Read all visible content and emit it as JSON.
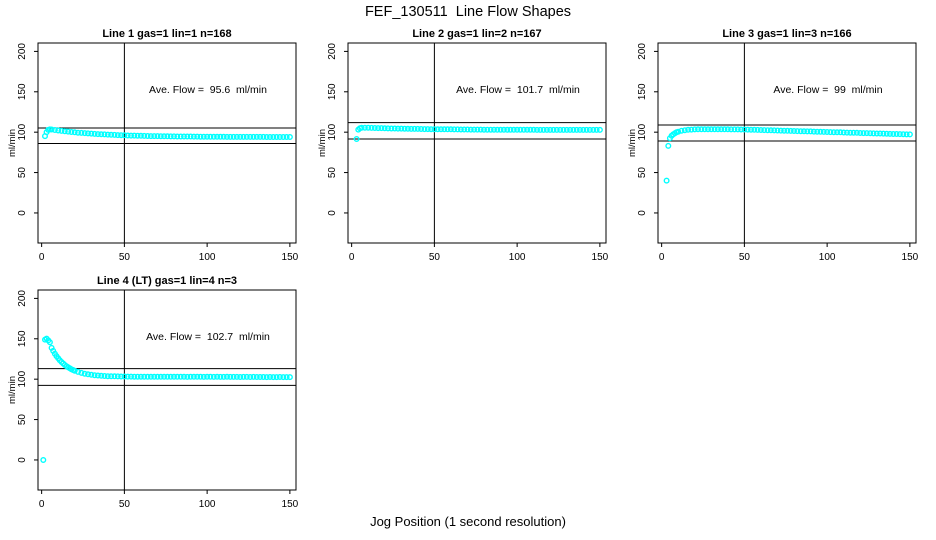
{
  "page": {
    "title": "FEF_130511  Line Flow Shapes",
    "xlabel": "Jog Position (1 second resolution)"
  },
  "colors": {
    "point": "#00ffff",
    "axis": "#000000",
    "background": "#ffffff"
  },
  "chart_data": [
    {
      "type": "scatter",
      "title": "Line 1 gas=1 lin=1 n=168",
      "annotation": "Ave. Flow =  95.6  ml/min",
      "ave_flow_ml_min": 95.6,
      "n": 168,
      "ylabel": "ml/min",
      "x_ticks": [
        0,
        50,
        100,
        150
      ],
      "y_ticks": [
        0,
        50,
        100,
        150,
        200
      ],
      "xlim": [
        -2.2,
        153.7
      ],
      "ylim": [
        -37.2,
        210.4
      ],
      "vline_x": 50,
      "hlines": [
        105.2,
        86.0
      ],
      "grid": false,
      "points": [
        [
          2,
          95.2
        ],
        [
          3,
          100.1
        ],
        [
          4,
          102.8
        ],
        [
          5,
          103.4
        ],
        [
          6,
          103.3
        ],
        [
          8,
          102.7
        ],
        [
          10,
          102.1
        ],
        [
          12,
          101.6
        ],
        [
          14,
          101.1
        ],
        [
          16,
          100.7
        ],
        [
          18,
          100.2
        ],
        [
          20,
          99.8
        ],
        [
          22,
          99.4
        ],
        [
          24,
          99.1
        ],
        [
          26,
          98.8
        ],
        [
          28,
          98.5
        ],
        [
          30,
          98.2
        ],
        [
          32,
          97.9
        ],
        [
          34,
          97.6
        ],
        [
          36,
          97.4
        ],
        [
          38,
          97.2
        ],
        [
          40,
          97.0
        ],
        [
          42,
          96.8
        ],
        [
          44,
          96.6
        ],
        [
          46,
          96.4
        ],
        [
          48,
          96.2
        ],
        [
          50,
          96.1
        ],
        [
          52,
          95.9
        ],
        [
          54,
          95.8
        ],
        [
          56,
          95.7
        ],
        [
          58,
          95.6
        ],
        [
          60,
          95.5
        ],
        [
          62,
          95.4
        ],
        [
          64,
          95.3
        ],
        [
          66,
          95.2
        ],
        [
          68,
          95.1
        ],
        [
          70,
          95.1
        ],
        [
          72,
          95.0
        ],
        [
          74,
          94.9
        ],
        [
          76,
          94.9
        ],
        [
          78,
          94.8
        ],
        [
          80,
          94.8
        ],
        [
          82,
          94.7
        ],
        [
          84,
          94.7
        ],
        [
          86,
          94.6
        ],
        [
          88,
          94.6
        ],
        [
          90,
          94.6
        ],
        [
          92,
          94.5
        ],
        [
          94,
          94.5
        ],
        [
          96,
          94.4
        ],
        [
          98,
          94.4
        ],
        [
          100,
          94.4
        ],
        [
          102,
          94.3
        ],
        [
          104,
          94.3
        ],
        [
          106,
          94.3
        ],
        [
          108,
          94.3
        ],
        [
          110,
          94.3
        ],
        [
          112,
          94.2
        ],
        [
          114,
          94.2
        ],
        [
          116,
          94.2
        ],
        [
          118,
          94.2
        ],
        [
          120,
          94.2
        ],
        [
          122,
          94.1
        ],
        [
          124,
          94.1
        ],
        [
          126,
          94.1
        ],
        [
          128,
          94.1
        ],
        [
          130,
          94.1
        ],
        [
          132,
          94.1
        ],
        [
          134,
          94.1
        ],
        [
          136,
          94.0
        ],
        [
          138,
          94.0
        ],
        [
          140,
          94.0
        ],
        [
          142,
          94.0
        ],
        [
          144,
          94.0
        ],
        [
          146,
          94.0
        ],
        [
          148,
          94.0
        ],
        [
          150,
          94.0
        ]
      ]
    },
    {
      "type": "scatter",
      "title": "Line 2 gas=1 lin=2 n=167",
      "annotation": "Ave. Flow =  101.7  ml/min",
      "ave_flow_ml_min": 101.7,
      "n": 167,
      "ylabel": "ml/min",
      "x_ticks": [
        0,
        50,
        100,
        150
      ],
      "y_ticks": [
        0,
        50,
        100,
        150,
        200
      ],
      "xlim": [
        -2.2,
        153.7
      ],
      "ylim": [
        -37.2,
        210.4
      ],
      "vline_x": 50,
      "hlines": [
        111.9,
        91.5
      ],
      "grid": false,
      "points": [
        [
          3,
          91.5
        ],
        [
          4,
          103.2
        ],
        [
          5,
          104.9
        ],
        [
          6,
          105.6
        ],
        [
          8,
          105.6
        ],
        [
          10,
          105.5
        ],
        [
          12,
          105.3
        ],
        [
          14,
          105.2
        ],
        [
          16,
          105.1
        ],
        [
          18,
          105.0
        ],
        [
          20,
          104.8
        ],
        [
          22,
          104.7
        ],
        [
          24,
          104.6
        ],
        [
          26,
          104.5
        ],
        [
          28,
          104.4
        ],
        [
          30,
          104.4
        ],
        [
          32,
          104.3
        ],
        [
          34,
          104.2
        ],
        [
          36,
          104.1
        ],
        [
          38,
          104.0
        ],
        [
          40,
          104.0
        ],
        [
          42,
          103.9
        ],
        [
          44,
          103.8
        ],
        [
          46,
          103.8
        ],
        [
          48,
          103.7
        ],
        [
          50,
          103.7
        ],
        [
          52,
          103.6
        ],
        [
          54,
          103.6
        ],
        [
          56,
          103.5
        ],
        [
          58,
          103.5
        ],
        [
          60,
          103.5
        ],
        [
          62,
          103.4
        ],
        [
          64,
          103.4
        ],
        [
          66,
          103.3
        ],
        [
          68,
          103.3
        ],
        [
          70,
          103.3
        ],
        [
          72,
          103.2
        ],
        [
          74,
          103.2
        ],
        [
          76,
          103.2
        ],
        [
          78,
          103.2
        ],
        [
          80,
          103.1
        ],
        [
          82,
          103.1
        ],
        [
          84,
          103.1
        ],
        [
          86,
          103.1
        ],
        [
          88,
          103.0
        ],
        [
          90,
          103.0
        ],
        [
          92,
          103.0
        ],
        [
          94,
          103.0
        ],
        [
          96,
          103.0
        ],
        [
          98,
          102.9
        ],
        [
          100,
          102.9
        ],
        [
          102,
          102.9
        ],
        [
          104,
          102.9
        ],
        [
          106,
          102.9
        ],
        [
          108,
          102.9
        ],
        [
          110,
          102.9
        ],
        [
          112,
          102.8
        ],
        [
          114,
          102.8
        ],
        [
          116,
          102.8
        ],
        [
          118,
          102.8
        ],
        [
          120,
          102.8
        ],
        [
          122,
          102.8
        ],
        [
          124,
          102.8
        ],
        [
          126,
          102.8
        ],
        [
          128,
          102.8
        ],
        [
          130,
          102.8
        ],
        [
          132,
          102.8
        ],
        [
          134,
          102.8
        ],
        [
          136,
          102.8
        ],
        [
          138,
          102.8
        ],
        [
          140,
          102.8
        ],
        [
          142,
          102.8
        ],
        [
          144,
          102.8
        ],
        [
          146,
          102.8
        ],
        [
          148,
          102.8
        ],
        [
          150,
          102.8
        ]
      ]
    },
    {
      "type": "scatter",
      "title": "Line 3 gas=1 lin=3 n=166",
      "annotation": "Ave. Flow =  99  ml/min",
      "ave_flow_ml_min": 99,
      "n": 166,
      "ylabel": "ml/min",
      "x_ticks": [
        0,
        50,
        100,
        150
      ],
      "y_ticks": [
        0,
        50,
        100,
        150,
        200
      ],
      "xlim": [
        -2.2,
        153.7
      ],
      "ylim": [
        -37.2,
        210.4
      ],
      "vline_x": 50,
      "hlines": [
        108.9,
        89.1
      ],
      "grid": false,
      "points": [
        [
          3,
          40
        ],
        [
          4,
          83
        ],
        [
          5,
          92.5
        ],
        [
          6,
          95.5
        ],
        [
          7,
          97.3
        ],
        [
          8,
          98.7
        ],
        [
          9,
          99.8
        ],
        [
          10,
          100.6
        ],
        [
          12,
          101.8
        ],
        [
          14,
          102.5
        ],
        [
          16,
          102.9
        ],
        [
          18,
          103.2
        ],
        [
          20,
          103.4
        ],
        [
          22,
          103.5
        ],
        [
          24,
          103.6
        ],
        [
          26,
          103.6
        ],
        [
          28,
          103.6
        ],
        [
          30,
          103.6
        ],
        [
          32,
          103.6
        ],
        [
          34,
          103.6
        ],
        [
          36,
          103.5
        ],
        [
          38,
          103.5
        ],
        [
          40,
          103.5
        ],
        [
          42,
          103.4
        ],
        [
          44,
          103.4
        ],
        [
          46,
          103.4
        ],
        [
          48,
          103.3
        ],
        [
          50,
          103.3
        ],
        [
          52,
          103.2
        ],
        [
          54,
          103.1
        ],
        [
          56,
          102.9
        ],
        [
          58,
          102.8
        ],
        [
          60,
          102.7
        ],
        [
          62,
          102.6
        ],
        [
          64,
          102.4
        ],
        [
          66,
          102.3
        ],
        [
          68,
          102.2
        ],
        [
          70,
          102.1
        ],
        [
          72,
          102.0
        ],
        [
          74,
          101.8
        ],
        [
          76,
          101.7
        ],
        [
          78,
          101.6
        ],
        [
          80,
          101.5
        ],
        [
          82,
          101.3
        ],
        [
          84,
          101.2
        ],
        [
          86,
          101.1
        ],
        [
          88,
          101.0
        ],
        [
          90,
          100.9
        ],
        [
          92,
          100.7
        ],
        [
          94,
          100.6
        ],
        [
          96,
          100.5
        ],
        [
          98,
          100.4
        ],
        [
          100,
          100.2
        ],
        [
          102,
          100.1
        ],
        [
          104,
          100.0
        ],
        [
          106,
          99.9
        ],
        [
          108,
          99.8
        ],
        [
          110,
          99.6
        ],
        [
          112,
          99.5
        ],
        [
          114,
          99.4
        ],
        [
          116,
          99.3
        ],
        [
          118,
          99.2
        ],
        [
          120,
          99.0
        ],
        [
          122,
          98.9
        ],
        [
          124,
          98.8
        ],
        [
          126,
          98.7
        ],
        [
          128,
          98.5
        ],
        [
          130,
          98.4
        ],
        [
          132,
          98.3
        ],
        [
          134,
          98.2
        ],
        [
          136,
          98.1
        ],
        [
          138,
          97.9
        ],
        [
          140,
          97.8
        ],
        [
          142,
          97.7
        ],
        [
          144,
          97.6
        ],
        [
          146,
          97.5
        ],
        [
          148,
          97.3
        ],
        [
          150,
          97.2
        ]
      ]
    },
    {
      "type": "scatter",
      "title": "Line 4 (LT) gas=1 lin=4 n=3",
      "annotation": "Ave. Flow =  102.7  ml/min",
      "ave_flow_ml_min": 102.7,
      "n": 3,
      "ylabel": "ml/min",
      "x_ticks": [
        0,
        50,
        100,
        150
      ],
      "y_ticks": [
        0,
        50,
        100,
        150,
        200
      ],
      "xlim": [
        -2.2,
        153.7
      ],
      "ylim": [
        -37.2,
        210.4
      ],
      "vline_x": 50,
      "hlines": [
        113.0,
        92.4
      ],
      "grid": false,
      "points": [
        [
          1,
          0
        ],
        [
          2,
          149
        ],
        [
          3,
          150.2
        ],
        [
          4,
          148
        ],
        [
          5,
          145.8
        ],
        [
          6,
          138.7
        ],
        [
          7,
          135
        ],
        [
          8,
          131.6
        ],
        [
          9,
          128.6
        ],
        [
          10,
          125.9
        ],
        [
          11,
          123.5
        ],
        [
          12,
          121.3
        ],
        [
          13,
          119.4
        ],
        [
          14,
          117.6
        ],
        [
          15,
          116.1
        ],
        [
          16,
          114.7
        ],
        [
          17,
          113.5
        ],
        [
          18,
          112.3
        ],
        [
          19,
          111.4
        ],
        [
          20,
          110.5
        ],
        [
          22,
          109
        ],
        [
          24,
          107.8
        ],
        [
          26,
          106.8
        ],
        [
          28,
          106
        ],
        [
          30,
          105.4
        ],
        [
          32,
          104.9
        ],
        [
          34,
          104.5
        ],
        [
          36,
          104.2
        ],
        [
          38,
          103.9
        ],
        [
          40,
          103.7
        ],
        [
          42,
          103.6
        ],
        [
          44,
          103.5
        ],
        [
          46,
          103.4
        ],
        [
          48,
          103.3
        ],
        [
          50,
          103.3
        ],
        [
          52,
          103.2
        ],
        [
          54,
          103.2
        ],
        [
          56,
          103.1
        ],
        [
          58,
          103.1
        ],
        [
          60,
          103.1
        ],
        [
          62,
          103.0
        ],
        [
          64,
          103.0
        ],
        [
          66,
          103.0
        ],
        [
          68,
          103.0
        ],
        [
          70,
          102.9
        ],
        [
          72,
          102.9
        ],
        [
          74,
          102.9
        ],
        [
          76,
          103.0
        ],
        [
          78,
          102.9
        ],
        [
          80,
          102.9
        ],
        [
          82,
          102.9
        ],
        [
          84,
          103.0
        ],
        [
          86,
          102.9
        ],
        [
          88,
          102.8
        ],
        [
          90,
          102.9
        ],
        [
          92,
          102.9
        ],
        [
          94,
          103.0
        ],
        [
          96,
          102.9
        ],
        [
          98,
          102.8
        ],
        [
          100,
          102.9
        ],
        [
          102,
          102.9
        ],
        [
          104,
          102.8
        ],
        [
          106,
          102.9
        ],
        [
          108,
          102.8
        ],
        [
          110,
          102.8
        ],
        [
          112,
          102.9
        ],
        [
          114,
          102.8
        ],
        [
          116,
          102.8
        ],
        [
          118,
          102.8
        ],
        [
          120,
          102.7
        ],
        [
          122,
          102.8
        ],
        [
          124,
          102.8
        ],
        [
          126,
          102.7
        ],
        [
          128,
          102.8
        ],
        [
          130,
          102.7
        ],
        [
          132,
          102.7
        ],
        [
          134,
          102.7
        ],
        [
          136,
          102.6
        ],
        [
          138,
          102.7
        ],
        [
          140,
          102.6
        ],
        [
          142,
          102.6
        ],
        [
          144,
          102.7
        ],
        [
          146,
          102.6
        ],
        [
          148,
          102.6
        ],
        [
          150,
          102.6
        ]
      ]
    }
  ]
}
